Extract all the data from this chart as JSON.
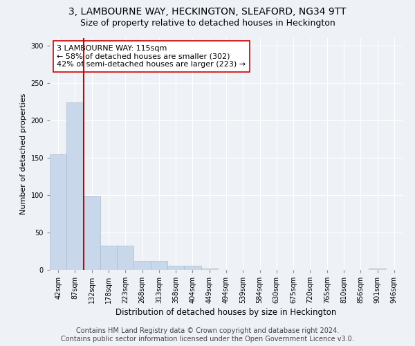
{
  "title": "3, LAMBOURNE WAY, HECKINGTON, SLEAFORD, NG34 9TT",
  "subtitle": "Size of property relative to detached houses in Heckington",
  "xlabel": "Distribution of detached houses by size in Heckington",
  "ylabel": "Number of detached properties",
  "bar_values": [
    155,
    224,
    99,
    32,
    32,
    12,
    12,
    6,
    6,
    2,
    0,
    0,
    0,
    0,
    0,
    0,
    0,
    0,
    0,
    2,
    0
  ],
  "categories": [
    "42sqm",
    "87sqm",
    "132sqm",
    "178sqm",
    "223sqm",
    "268sqm",
    "313sqm",
    "358sqm",
    "404sqm",
    "449sqm",
    "494sqm",
    "539sqm",
    "584sqm",
    "630sqm",
    "675sqm",
    "720sqm",
    "765sqm",
    "810sqm",
    "856sqm",
    "901sqm",
    "946sqm"
  ],
  "bar_color": "#c8d8ea",
  "bar_edgecolor": "#a8bece",
  "vline_x": 1.5,
  "vline_color": "#cc0000",
  "annotation_text": "3 LAMBOURNE WAY: 115sqm\n← 58% of detached houses are smaller (302)\n42% of semi-detached houses are larger (223) →",
  "ylim": [
    0,
    310
  ],
  "yticks": [
    0,
    50,
    100,
    150,
    200,
    250,
    300
  ],
  "footer_line1": "Contains HM Land Registry data © Crown copyright and database right 2024.",
  "footer_line2": "Contains public sector information licensed under the Open Government Licence v3.0.",
  "background_color": "#eef2f7",
  "plot_background": "#eef2f7",
  "title_fontsize": 10,
  "subtitle_fontsize": 9,
  "xlabel_fontsize": 8.5,
  "ylabel_fontsize": 8,
  "annotation_fontsize": 8,
  "footer_fontsize": 7,
  "tick_fontsize": 7
}
